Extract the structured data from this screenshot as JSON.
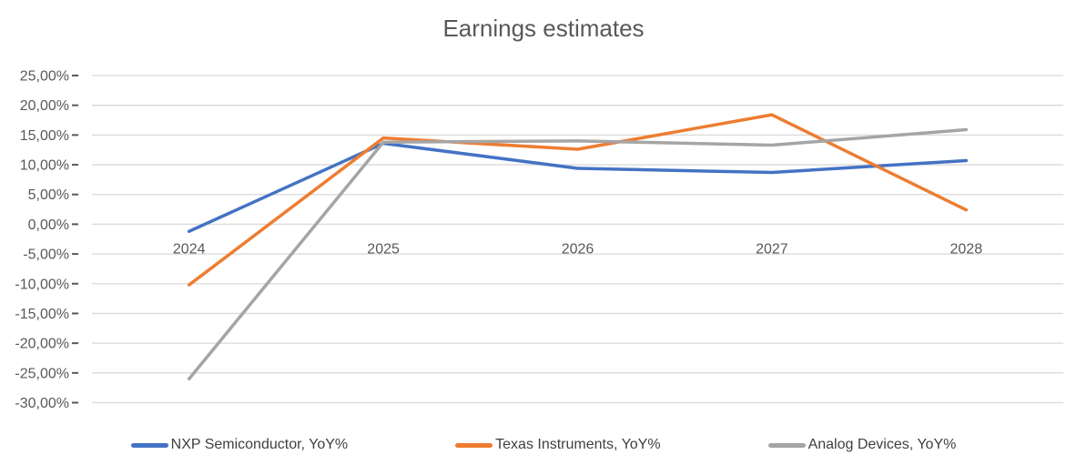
{
  "title": "Earnings estimates",
  "chart_data": {
    "type": "line",
    "title": "Earnings estimates",
    "categories": [
      "2024",
      "2025",
      "2026",
      "2027",
      "2028"
    ],
    "series": [
      {
        "name": "NXP Semiconductor, YoY%",
        "color": "#4472C4",
        "values": [
          -1.2,
          13.6,
          9.4,
          8.7,
          10.7
        ]
      },
      {
        "name": "Texas Instruments, YoY%",
        "color": "#ED7D31",
        "values": [
          -10.2,
          14.5,
          12.6,
          18.4,
          2.4
        ]
      },
      {
        "name": "Analog Devices, YoY%",
        "color": "#A5A5A5",
        "values": [
          -26.0,
          13.8,
          14.0,
          13.3,
          15.9
        ]
      }
    ],
    "ylim": [
      -30,
      25
    ],
    "ytick_step": 5,
    "ytick_labels": [
      "25,00%",
      "20,00%",
      "15,00%",
      "10,00%",
      "5,00%",
      "0,00%",
      "-5,00%",
      "-10,00%",
      "-15,00%",
      "-20,00%",
      "-25,00%",
      "-30,00%"
    ],
    "xlabel": "",
    "ylabel": "",
    "grid": true,
    "legend_position": "bottom",
    "number_format": "comma-decimal percent"
  },
  "colors": {
    "background": "#FFFFFF",
    "title_text": "#595959",
    "axis_text": "#595959",
    "gridline": "#D9D9D9",
    "tick_mark": "#595959",
    "legend_text": "#3F3F3F",
    "series_blue": "#4472C4",
    "series_orange": "#ED7D31",
    "series_gray": "#A5A5A5"
  }
}
